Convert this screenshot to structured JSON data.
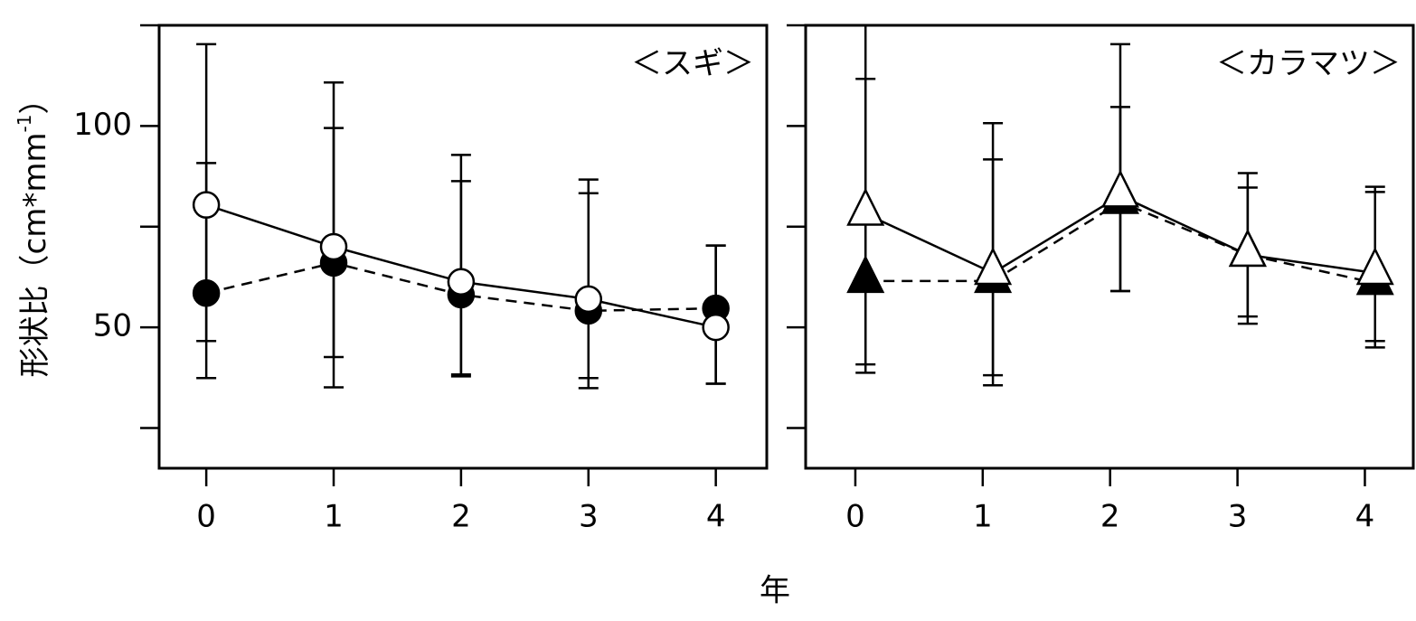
{
  "chart_data": [
    {
      "type": "line",
      "label": "＜スギ＞",
      "ylabel": "形状比（cm*mm",
      "ylabel_sup": "-1",
      "ylabel_end": "）",
      "xlabel": "年",
      "x": [
        0,
        1,
        2,
        3,
        4
      ],
      "xlim": [
        -0.37,
        4.4
      ],
      "xticks": [
        0,
        1,
        2,
        3,
        4
      ],
      "ylim": [
        15,
        125
      ],
      "yticks": [
        50,
        100
      ],
      "yminor_ticks": [
        25,
        75,
        125
      ],
      "ytick_labels": true,
      "series": [
        {
          "marker": "circle",
          "fill": "#000000",
          "dashed": true,
          "values": [
            58.5,
            66.0,
            58.1,
            54.1,
            54.7
          ],
          "err_high": [
            90.8,
            99.5,
            86.3,
            83.3,
            70.3
          ],
          "err_low": [
            46.6,
            42.6,
            38.3,
            37.4,
            36.0
          ]
        },
        {
          "marker": "circle",
          "fill": "#ffffff",
          "dashed": false,
          "values": [
            80.4,
            70.0,
            61.3,
            57.0,
            50.0
          ],
          "err_high": [
            120.3,
            110.8,
            92.8,
            86.7,
            70.3
          ],
          "err_low": [
            37.4,
            35.1,
            37.8,
            34.9,
            36.0
          ]
        }
      ]
    },
    {
      "type": "line",
      "label": "＜カラマツ＞",
      "x": [
        0.08,
        1.08,
        2.08,
        3.08,
        4.08
      ],
      "xlim": [
        -0.39,
        4.38
      ],
      "xticks": [
        0,
        1,
        2,
        3,
        4
      ],
      "ylim": [
        15,
        125
      ],
      "yticks": [
        50,
        100
      ],
      "yminor_ticks": [
        25,
        75,
        125
      ],
      "ytick_labels": false,
      "series": [
        {
          "marker": "triangle",
          "fill": "#000000",
          "dashed": true,
          "values": [
            61.5,
            61.5,
            81.1,
            68.0,
            61.0
          ],
          "err_high": [
            111.7,
            91.7,
            104.7,
            84.7,
            83.6
          ],
          "err_low": [
            40.8,
            38.1,
            59.0,
            52.7,
            46.6
          ]
        },
        {
          "marker": "triangle",
          "fill": "#ffffff",
          "dashed": false,
          "values": [
            78.2,
            63.5,
            82.7,
            68.0,
            63.5
          ],
          "err_high": [
            126,
            100.7,
            120.3,
            88.3,
            84.9
          ],
          "err_low": [
            38.7,
            35.6,
            59.0,
            50.9,
            45.0
          ]
        }
      ]
    }
  ]
}
